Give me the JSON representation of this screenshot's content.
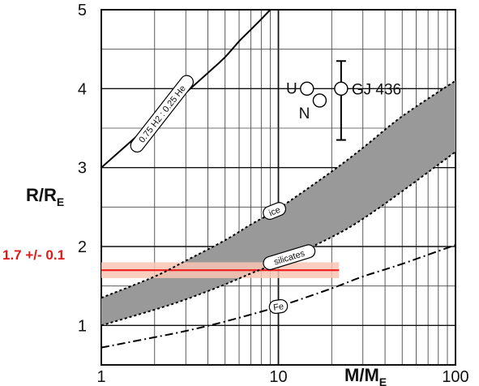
{
  "chart_data": {
    "type": "line",
    "title": "",
    "xlabel": "M/M",
    "xlabel_sub": "E",
    "ylabel": "R/R",
    "ylabel_sub": "E",
    "xscale": "log",
    "xlim": [
      1,
      100
    ],
    "ylim": [
      0.5,
      5
    ],
    "grid": true,
    "x_ticks": [
      {
        "value": 1,
        "label": "1"
      },
      {
        "value": 10,
        "label": "10"
      },
      {
        "value": 100,
        "label": "100"
      }
    ],
    "y_ticks": [
      {
        "value": 1,
        "label": "1"
      },
      {
        "value": 2,
        "label": "2"
      },
      {
        "value": 3,
        "label": "3"
      },
      {
        "value": 4,
        "label": "4"
      },
      {
        "value": 5,
        "label": "5"
      }
    ],
    "series": [
      {
        "name": "0.75 H2 : 0.25 He",
        "style": "solid",
        "label_at_x": 2.2,
        "label_angle": -52,
        "points": [
          [
            1,
            3.0
          ],
          [
            1.5,
            3.35
          ],
          [
            2,
            3.6
          ],
          [
            3,
            3.95
          ],
          [
            4,
            4.2
          ],
          [
            5,
            4.4
          ],
          [
            6,
            4.6
          ],
          [
            7,
            4.75
          ],
          [
            8,
            4.88
          ],
          [
            9,
            5.0
          ]
        ]
      },
      {
        "name": "ice",
        "style": "dotted",
        "label_at_x": 9.5,
        "label_angle": -22,
        "points": [
          [
            1,
            1.35
          ],
          [
            2,
            1.62
          ],
          [
            3,
            1.82
          ],
          [
            5,
            2.08
          ],
          [
            7,
            2.28
          ],
          [
            10,
            2.48
          ],
          [
            20,
            2.95
          ],
          [
            30,
            3.25
          ],
          [
            50,
            3.65
          ],
          [
            100,
            4.1
          ]
        ]
      },
      {
        "name": "silicates",
        "style": "dotted",
        "label_at_x": 11.5,
        "label_angle": -17,
        "points": [
          [
            1,
            1.0
          ],
          [
            2,
            1.2
          ],
          [
            3,
            1.33
          ],
          [
            5,
            1.52
          ],
          [
            7,
            1.66
          ],
          [
            10,
            1.8
          ],
          [
            20,
            2.12
          ],
          [
            30,
            2.35
          ],
          [
            50,
            2.7
          ],
          [
            100,
            3.2
          ]
        ]
      },
      {
        "name": "Fe",
        "style": "dashdot",
        "label_at_x": 10,
        "label_angle": -8,
        "points": [
          [
            1,
            0.72
          ],
          [
            2,
            0.85
          ],
          [
            3,
            0.93
          ],
          [
            5,
            1.05
          ],
          [
            10,
            1.24
          ],
          [
            20,
            1.47
          ],
          [
            30,
            1.62
          ],
          [
            50,
            1.78
          ],
          [
            100,
            2.02
          ]
        ]
      }
    ],
    "shaded_band": {
      "between": [
        "ice",
        "silicates"
      ],
      "color": "#999999"
    },
    "planets": [
      {
        "label": "U",
        "mass": 14.5,
        "radius": 4.0
      },
      {
        "label": "N",
        "mass": 17.1,
        "radius": 3.85
      },
      {
        "label": "GJ 436",
        "mass": 22.6,
        "radius": 4.0,
        "radius_err": [
          3.35,
          4.35
        ]
      }
    ],
    "reference": {
      "label": "1.7 +/- 0.1",
      "value": 1.7,
      "band": [
        1.6,
        1.8
      ],
      "x_extent": [
        1,
        22
      ],
      "color": "#ee1c1c",
      "band_color": "#f8c6b4"
    }
  }
}
